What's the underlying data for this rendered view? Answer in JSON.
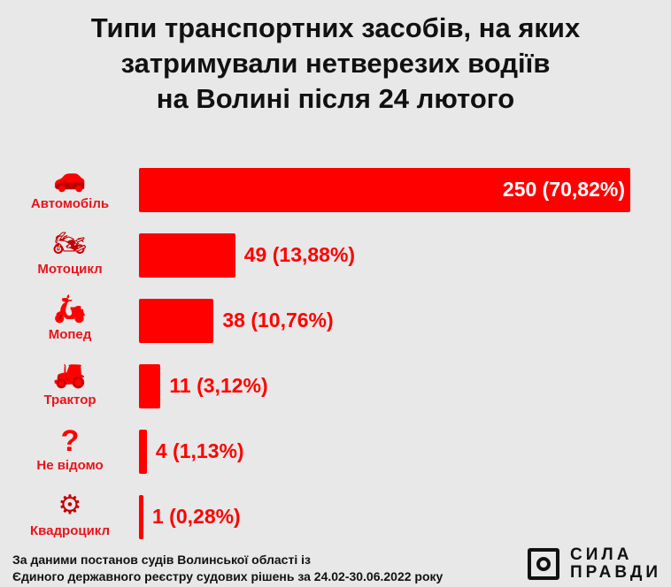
{
  "chart_data": {
    "type": "bar",
    "orientation": "horizontal",
    "title": "Типи транспортних засобів, на яких затримували нетверезих водіїв на Волині після 24 лютого",
    "categories": [
      "Автомобіль",
      "Мотоцикл",
      "Мопед",
      "Трактор",
      "Не відомо",
      "Квадроцикл"
    ],
    "values": [
      250,
      49,
      38,
      11,
      4,
      1
    ],
    "data_labels": [
      "250 (70,82%)",
      "49 (13,88%)",
      "38 (10,76%)",
      "11 (3,12%)",
      "4 (1,13%)",
      "1 (0,28%)"
    ],
    "icons": [
      "car-icon",
      "motorcycle-icon",
      "moped-icon",
      "tractor-icon",
      "question-icon",
      "quad-bike-icon"
    ],
    "grid": false,
    "bar_color": "#ff0000"
  },
  "footer": {
    "line1": "За даними постанов судів Волинської області із",
    "line2": "Єдиного державного реєстру судових рішень за 24.02-30.06.2022 року"
  },
  "logo": {
    "line1": "СИЛА",
    "line2": "ПРАВДИ"
  }
}
